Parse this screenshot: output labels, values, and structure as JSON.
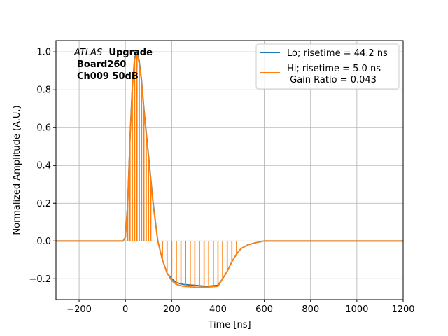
{
  "chart_data": {
    "type": "line",
    "xlabel": "Time [ns]",
    "ylabel": "Normalized Amplitude (A.U.)",
    "xlim": [
      -300,
      1200
    ],
    "ylim": [
      -0.31,
      1.06
    ],
    "xticks": [
      -200,
      0,
      200,
      400,
      600,
      800,
      1000,
      1200
    ],
    "xtick_labels": [
      "−200",
      "0",
      "200",
      "400",
      "600",
      "800",
      "1000",
      "1200"
    ],
    "yticks": [
      -0.2,
      0.0,
      0.2,
      0.4,
      0.6,
      0.8,
      1.0
    ],
    "ytick_labels": [
      "−0.2",
      "0.0",
      "0.2",
      "0.4",
      "0.6",
      "0.8",
      "1.0"
    ],
    "grid": true,
    "legend_position": "top-right",
    "annotation": {
      "line1_italic": "ATLAS",
      "line1_bold": "Upgrade",
      "line2": "Board260",
      "line3": "Ch009 50dB"
    },
    "series": [
      {
        "name": "Lo; risetime = 44.2 ns",
        "color": "#1f77b4",
        "x": [
          -300,
          -100,
          -10,
          0,
          10,
          20,
          30,
          40,
          50,
          60,
          70,
          80,
          100,
          120,
          140,
          160,
          180,
          200,
          220,
          250,
          300,
          350,
          400,
          420,
          440,
          460,
          480,
          500,
          530,
          560,
          600,
          700,
          800,
          900,
          1000,
          1100,
          1200
        ],
        "y": [
          0,
          0,
          0,
          0.02,
          0.2,
          0.55,
          0.82,
          0.97,
          1.0,
          0.95,
          0.85,
          0.7,
          0.45,
          0.2,
          0.0,
          -0.1,
          -0.17,
          -0.2,
          -0.22,
          -0.23,
          -0.235,
          -0.24,
          -0.235,
          -0.2,
          -0.16,
          -0.11,
          -0.07,
          -0.04,
          -0.02,
          -0.01,
          0,
          0,
          0,
          0,
          0,
          0,
          0
        ]
      },
      {
        "name": "Hi; risetime = 5.0 ns\n Gain Ratio = 0.043",
        "color": "#ff7f0e",
        "x": [
          -300,
          -100,
          -10,
          0,
          10,
          20,
          30,
          40,
          50,
          60,
          70,
          80,
          100,
          120,
          140,
          160,
          180,
          200,
          220,
          250,
          300,
          350,
          400,
          420,
          440,
          460,
          480,
          500,
          530,
          560,
          600,
          700,
          800,
          900,
          1000,
          1100,
          1200
        ],
        "y": [
          0,
          0,
          0,
          0.02,
          0.19,
          0.54,
          0.81,
          0.96,
          0.99,
          0.94,
          0.84,
          0.69,
          0.44,
          0.19,
          0.0,
          -0.1,
          -0.17,
          -0.21,
          -0.23,
          -0.24,
          -0.245,
          -0.245,
          -0.24,
          -0.2,
          -0.16,
          -0.11,
          -0.07,
          -0.04,
          -0.02,
          -0.01,
          0,
          0,
          0,
          0,
          0,
          0,
          0
        ],
        "spike_x": [
          10,
          20,
          30,
          40,
          50,
          60,
          70,
          80,
          90,
          100,
          110,
          140,
          160,
          180,
          200,
          220,
          240,
          260,
          280,
          300,
          320,
          340,
          360,
          380,
          400,
          420,
          440,
          460,
          480
        ]
      }
    ]
  }
}
